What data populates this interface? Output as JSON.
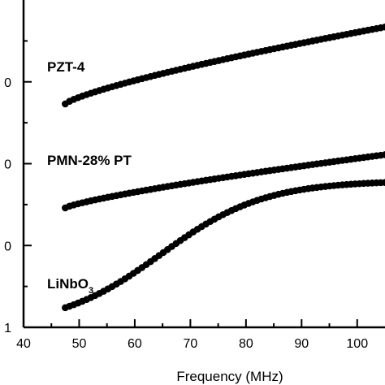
{
  "chart_data": {
    "type": "scatter",
    "title": "",
    "xlabel": "Frequency (MHz)",
    "ylabel": "",
    "xlim": [
      40,
      105
    ],
    "ylim": [
      0,
      4
    ],
    "x_ticks": [
      "40",
      "50",
      "60",
      "70",
      "80",
      "90",
      "100"
    ],
    "y_tick_labels": [
      "0",
      "0",
      "0",
      "1"
    ],
    "grid": false,
    "legend": "none",
    "marker_color": "#000000",
    "series": [
      {
        "name": "PZT-4",
        "label_main": "PZT-4",
        "label_sub": "",
        "x_start": 47.5,
        "x_end": 105,
        "y_start": 2.73,
        "y_end": 3.67
      },
      {
        "name": "PMN-28% PT",
        "label_main": "PMN-28% PT",
        "label_sub": "",
        "x_start": 47.5,
        "x_end": 105,
        "y_start": 1.46,
        "y_end": 2.11
      },
      {
        "name": "LiNbO3",
        "label_main": "LiNbO",
        "label_sub": "3",
        "x_start": 47.5,
        "x_end": 105,
        "y_start": 0.24,
        "y_end": 1.77
      }
    ]
  }
}
